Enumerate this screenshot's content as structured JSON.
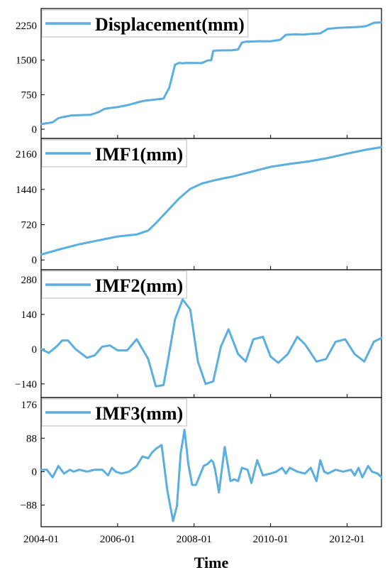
{
  "chart_data": [
    {
      "type": "line",
      "legend": "Displacement(mm)",
      "legend_position": "top-left",
      "color": "#5aaee0",
      "ylim": [
        -200,
        2620
      ],
      "yticks": [
        0,
        750,
        1500,
        2250
      ],
      "series": [
        {
          "name": "Displacement(mm)",
          "x": [
            2004.0,
            2004.3,
            2004.45,
            2004.55,
            2004.8,
            2005.0,
            2005.3,
            2005.5,
            2005.65,
            2005.75,
            2006.0,
            2006.3,
            2006.6,
            2006.75,
            2006.9,
            2007.2,
            2007.35,
            2007.5,
            2007.6,
            2007.7,
            2007.8,
            2008.2,
            2008.35,
            2008.45,
            2008.5,
            2008.6,
            2009.0,
            2009.15,
            2009.25,
            2009.35,
            2009.7,
            2010.0,
            2010.25,
            2010.4,
            2010.65,
            2010.85,
            2011.0,
            2011.3,
            2011.5,
            2011.65,
            2011.75,
            2012.3,
            2012.5,
            2012.7,
            2012.9
          ],
          "y": [
            110,
            150,
            240,
            260,
            300,
            305,
            315,
            370,
            440,
            455,
            480,
            530,
            600,
            625,
            635,
            665,
            900,
            1400,
            1440,
            1430,
            1440,
            1435,
            1490,
            1500,
            1700,
            1710,
            1715,
            1730,
            1880,
            1900,
            1910,
            1910,
            1940,
            2050,
            2060,
            2055,
            2065,
            2080,
            2180,
            2190,
            2200,
            2220,
            2240,
            2310,
            2320
          ]
        }
      ]
    },
    {
      "type": "line",
      "legend": "IMF1(mm)",
      "legend_position": "top-left",
      "color": "#5aaee0",
      "ylim": [
        -200,
        2480
      ],
      "yticks": [
        0,
        720,
        1440,
        2160
      ],
      "series": [
        {
          "name": "IMF1(mm)",
          "x": [
            2004.0,
            2004.5,
            2005.0,
            2005.5,
            2006.0,
            2006.5,
            2006.8,
            2007.0,
            2007.3,
            2007.6,
            2007.9,
            2008.2,
            2008.5,
            2008.8,
            2009.0,
            2009.5,
            2010.0,
            2010.5,
            2011.0,
            2011.5,
            2012.0,
            2012.5,
            2012.9
          ],
          "y": [
            110,
            220,
            320,
            400,
            480,
            520,
            600,
            750,
            1000,
            1250,
            1450,
            1560,
            1620,
            1670,
            1700,
            1800,
            1900,
            1960,
            2010,
            2080,
            2170,
            2250,
            2300
          ]
        }
      ]
    },
    {
      "type": "line",
      "legend": "IMF2(mm)",
      "legend_position": "top-left",
      "color": "#5aaee0",
      "ylim": [
        -195,
        320
      ],
      "yticks": [
        -140,
        0,
        140,
        280
      ],
      "series": [
        {
          "name": "IMF2(mm)",
          "x": [
            2004.0,
            2004.2,
            2004.4,
            2004.55,
            2004.7,
            2004.9,
            2005.2,
            2005.4,
            2005.6,
            2005.8,
            2006.0,
            2006.25,
            2006.5,
            2006.8,
            2007.0,
            2007.2,
            2007.3,
            2007.5,
            2007.7,
            2007.9,
            2008.1,
            2008.3,
            2008.5,
            2008.7,
            2008.9,
            2009.15,
            2009.35,
            2009.55,
            2009.8,
            2010.0,
            2010.2,
            2010.45,
            2010.7,
            2010.9,
            2011.2,
            2011.45,
            2011.7,
            2011.95,
            2012.2,
            2012.45,
            2012.7,
            2012.9
          ],
          "y": [
            0,
            -15,
            10,
            35,
            35,
            0,
            -35,
            -25,
            10,
            15,
            -5,
            -5,
            40,
            -40,
            -150,
            -145,
            -60,
            120,
            200,
            160,
            -50,
            -140,
            -130,
            10,
            80,
            -20,
            -50,
            40,
            50,
            -30,
            -55,
            -20,
            50,
            20,
            -50,
            -40,
            30,
            40,
            -20,
            -50,
            30,
            45
          ]
        }
      ]
    },
    {
      "type": "line",
      "legend": "IMF3(mm)",
      "legend_position": "top-left",
      "color": "#5aaee0",
      "ylim": [
        -145,
        195
      ],
      "yticks": [
        -88,
        0,
        88,
        176
      ],
      "xticks": [
        "2004-01",
        "2006-01",
        "2008-01",
        "2010-01",
        "2012-01"
      ],
      "xtick_values": [
        2004,
        2006,
        2008,
        2010,
        2012
      ],
      "xlim": [
        2004,
        2012.9
      ],
      "xlabel": "Time",
      "series": [
        {
          "name": "IMF3(mm)",
          "x": [
            2004.0,
            2004.15,
            2004.3,
            2004.45,
            2004.6,
            2004.75,
            2004.85,
            2005.0,
            2005.2,
            2005.4,
            2005.6,
            2005.75,
            2005.85,
            2005.95,
            2006.1,
            2006.3,
            2006.5,
            2006.65,
            2006.8,
            2006.9,
            2007.0,
            2007.15,
            2007.3,
            2007.45,
            2007.55,
            2007.65,
            2007.75,
            2007.85,
            2007.95,
            2008.05,
            2008.25,
            2008.35,
            2008.45,
            2008.5,
            2008.55,
            2008.65,
            2008.8,
            2008.95,
            2009.05,
            2009.15,
            2009.25,
            2009.4,
            2009.5,
            2009.65,
            2009.8,
            2010.0,
            2010.15,
            2010.3,
            2010.4,
            2010.5,
            2010.7,
            2010.9,
            2011.05,
            2011.2,
            2011.3,
            2011.4,
            2011.5,
            2011.7,
            2011.9,
            2012.1,
            2012.2,
            2012.3,
            2012.4,
            2012.55,
            2012.65,
            2012.8,
            2012.9
          ],
          "y": [
            5,
            5,
            -15,
            15,
            -5,
            5,
            0,
            5,
            0,
            5,
            5,
            -10,
            10,
            0,
            -5,
            0,
            15,
            40,
            35,
            50,
            60,
            70,
            -50,
            -130,
            -90,
            50,
            110,
            20,
            -35,
            -35,
            15,
            20,
            30,
            25,
            5,
            -55,
            65,
            -25,
            -20,
            -25,
            10,
            5,
            -30,
            30,
            -10,
            -5,
            0,
            10,
            -5,
            10,
            0,
            -5,
            10,
            -25,
            30,
            0,
            -5,
            5,
            0,
            5,
            -10,
            10,
            -15,
            15,
            0,
            -5,
            -15
          ]
        }
      ]
    }
  ]
}
